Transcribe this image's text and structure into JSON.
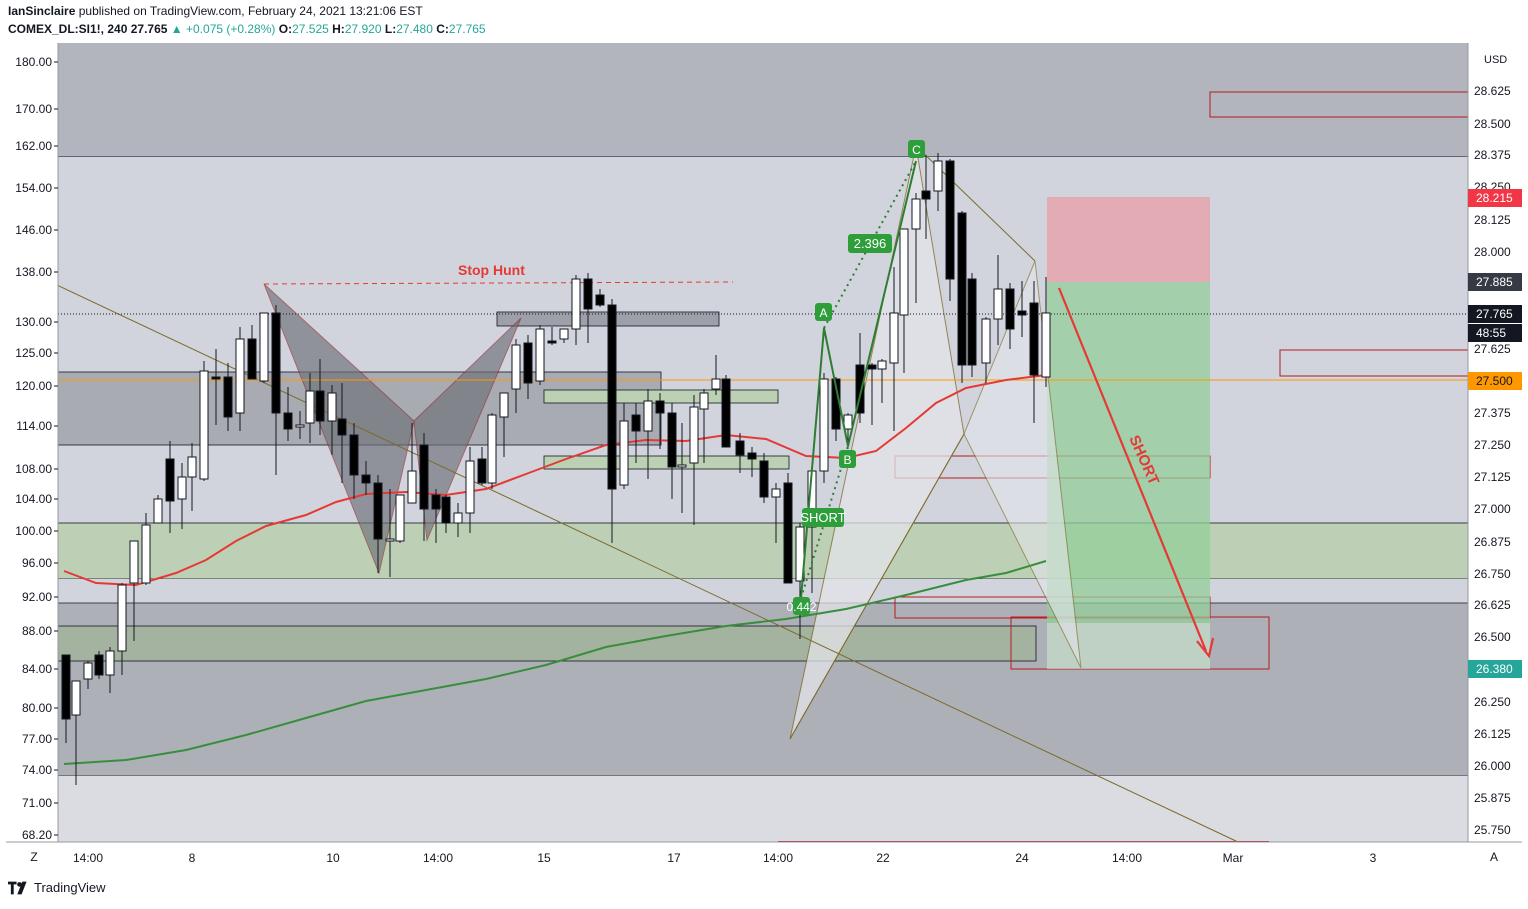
{
  "header": {
    "author": "IanSinclaire",
    "published_text": "published on TradingView.com, February 24, 2021 13:21:06 EST",
    "symbol": "COMEX_DL:SI1!, 240",
    "last": "27.765",
    "change": "+0.075 (+0.28%)",
    "o_label": "O:",
    "o": "27.525",
    "h_label": "H:",
    "h": "27.920",
    "l_label": "L:",
    "l": "27.480",
    "c_label": "C:",
    "c": "27.765"
  },
  "footer": {
    "brand": "TradingView"
  },
  "axis_controls": {
    "left": "Z",
    "right": "A",
    "currency": "USD"
  },
  "chart_data": {
    "type": "candlestick",
    "left_axis": {
      "ticks": [
        "180.00",
        "170.00",
        "162.00",
        "154.00",
        "146.00",
        "138.00",
        "130.00",
        "125.00",
        "120.00",
        "114.00",
        "108.00",
        "104.00",
        "100.00",
        "96.00",
        "92.00",
        "88.00",
        "84.00",
        "80.00",
        "77.00",
        "74.00",
        "71.00",
        "68.20"
      ]
    },
    "right_axis": {
      "unit": "USD",
      "ticks": [
        "28.625",
        "28.500",
        "28.375",
        "28.250",
        "28.125",
        "28.000",
        "27.875",
        "27.750",
        "27.625",
        "27.500",
        "27.375",
        "27.250",
        "27.125",
        "27.000",
        "26.875",
        "26.750",
        "26.625",
        "26.500",
        "26.375",
        "26.250",
        "26.125",
        "26.000",
        "25.875",
        "25.750"
      ]
    },
    "x_axis": {
      "ticks": [
        "14:00",
        "8",
        "10",
        "14:00",
        "15",
        "17",
        "14:00",
        "22",
        "24",
        "14:00",
        "Mar",
        "3"
      ]
    },
    "price_labels": [
      {
        "value": "28.215",
        "color": "#f23645"
      },
      {
        "value": "27.885",
        "color": "#363a45"
      },
      {
        "value": "27.765",
        "color": "#131722"
      },
      {
        "value": "48:55",
        "color": "#131722"
      },
      {
        "value": "27.500",
        "color": "#ff9800"
      },
      {
        "value": "26.380",
        "color": "#26a69a"
      }
    ],
    "annotations": [
      "Stop Hunt",
      "SHORT",
      "2.396",
      "0.442",
      "A",
      "B",
      "C",
      "D"
    ],
    "pattern_points": [
      "A",
      "B",
      "C",
      "D"
    ],
    "ratios": {
      "AB_CD": "2.396",
      "BC": "0.442"
    },
    "trade": {
      "direction": "SHORT",
      "entry": 27.885,
      "stop": 28.215,
      "target": 26.38
    },
    "colors": {
      "bull": "#ffffff",
      "bear": "#000000",
      "ma_fast": "#f23645",
      "ma_slow": "#388e3c",
      "harmonic": "#2e7d32",
      "stop_hunt": "#e53935"
    }
  }
}
